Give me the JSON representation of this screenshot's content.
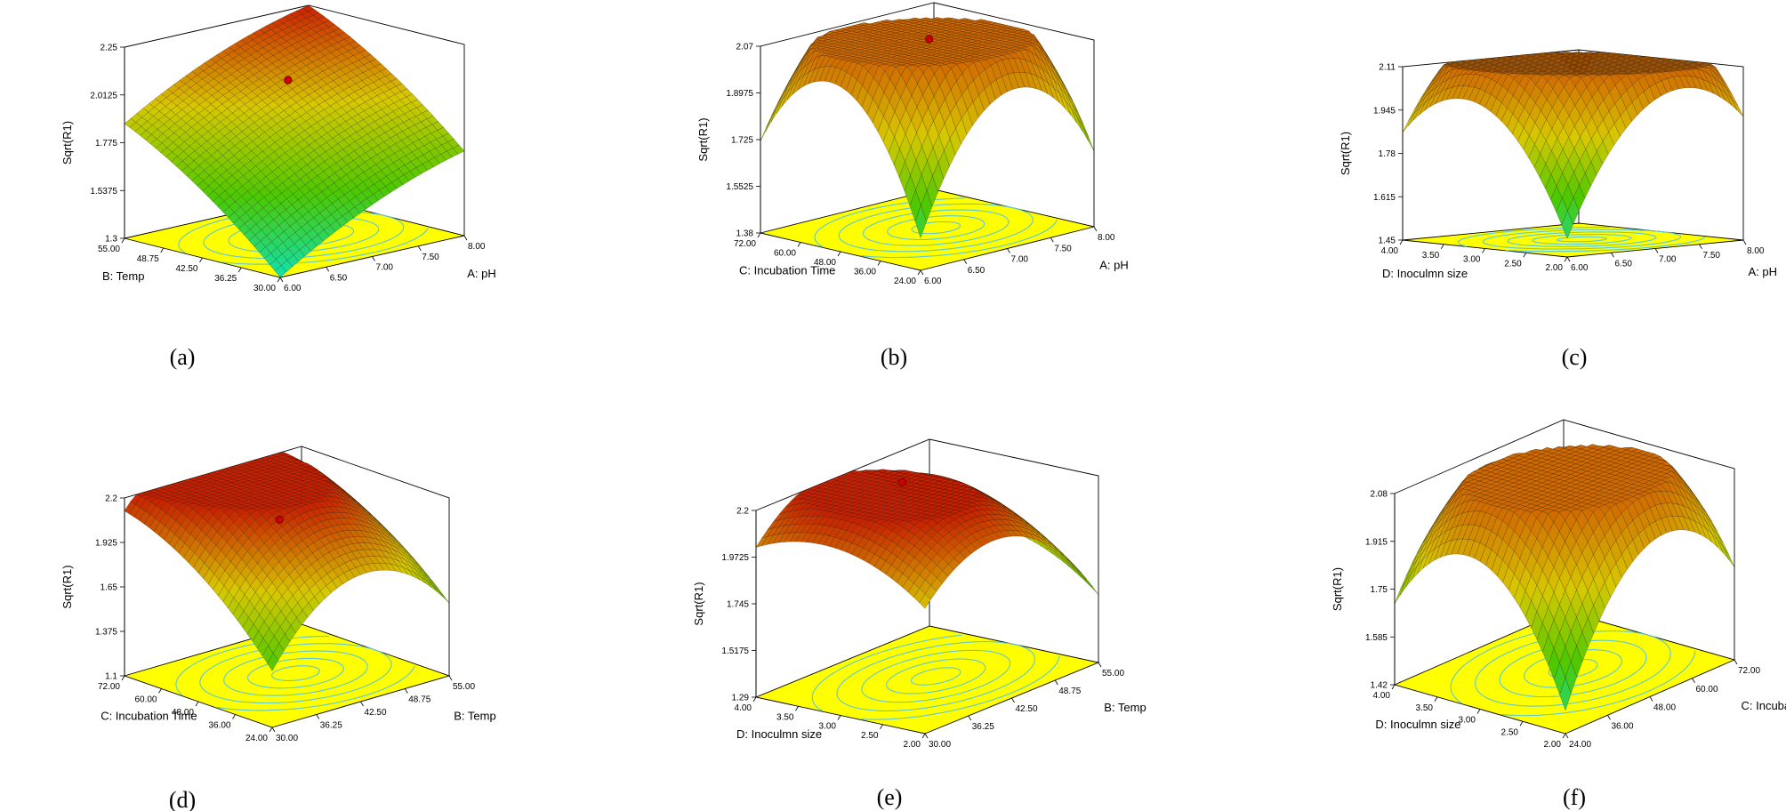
{
  "chart_data": [
    {
      "panel": "(a)",
      "type": "surface",
      "zlabel": "Sqrt(R1)",
      "zticks": [
        "1.3",
        "1.5375",
        "1.775",
        "2.0125",
        "2.25"
      ],
      "xlabel": "A: pH",
      "xticks": [
        "6.00",
        "6.50",
        "7.00",
        "7.50",
        "8.00"
      ],
      "ylabel": "B: Temp",
      "yticks": [
        "30.00",
        "36.25",
        "42.50",
        "48.75",
        "55.00"
      ],
      "zlim": [
        1.3,
        2.25
      ],
      "surface": {
        "corners": [
          1.3,
          1.72,
          1.87,
          2.25
        ],
        "curvature": [
          0.05,
          0.05
        ],
        "top_color": "#cc2200"
      },
      "design_point": {
        "u": 0.55,
        "v": 0.6,
        "z": 2.05
      }
    },
    {
      "panel": "(b)",
      "type": "surface",
      "zlabel": "Sqrt(R1)",
      "zticks": [
        "1.38",
        "1.5525",
        "1.725",
        "1.8975",
        "2.07"
      ],
      "xlabel": "A: pH",
      "xticks": [
        "6.00",
        "6.50",
        "7.00",
        "7.50",
        "8.00"
      ],
      "ylabel": "C: Incubation Time",
      "yticks": [
        "24.00",
        "36.00",
        "48.00",
        "60.00",
        "72.00"
      ],
      "zlim": [
        1.38,
        2.07
      ],
      "surface": {
        "corners": [
          1.5,
          1.66,
          1.72,
          1.6
        ],
        "curvature": [
          0.55,
          0.55
        ],
        "top_color": "#d06a00"
      },
      "design_point": {
        "u": 0.65,
        "v": 0.65,
        "z": 2.04
      }
    },
    {
      "panel": "(c)",
      "type": "surface",
      "zlabel": "Sqrt(R1)",
      "zticks": [
        "1.45",
        "1.615",
        "1.78",
        "1.945",
        "2.11"
      ],
      "xlabel": "A: pH",
      "xticks": [
        "6.00",
        "6.50",
        "7.00",
        "7.50",
        "8.00"
      ],
      "ylabel": "D: Inoculmn size",
      "yticks": [
        "2.00",
        "2.50",
        "3.00",
        "3.50",
        "4.00"
      ],
      "zlim": [
        1.45,
        2.11
      ],
      "surface": {
        "corners": [
          1.52,
          1.92,
          1.86,
          1.99
        ],
        "curvature": [
          0.45,
          0.45
        ],
        "top_color": "#d06a00"
      },
      "design_point": null
    },
    {
      "panel": "(d)",
      "type": "surface",
      "zlabel": "Sqrt(R1)",
      "zticks": [
        "1.1",
        "1.375",
        "1.65",
        "1.925",
        "2.2"
      ],
      "xlabel": "B: Temp",
      "xticks": [
        "30.00",
        "36.25",
        "42.50",
        "48.75",
        "55.00"
      ],
      "ylabel": "C: Incubation Time",
      "yticks": [
        "24.00",
        "36.00",
        "48.00",
        "60.00",
        "72.00"
      ],
      "zlim": [
        1.1,
        2.2
      ],
      "surface": {
        "corners": [
          1.45,
          1.55,
          2.12,
          2.05
        ],
        "curvature": [
          0.35,
          0.1
        ],
        "top_color": "#c62000"
      },
      "design_point": {
        "u": 0.5,
        "v": 0.55,
        "z": 2.05
      }
    },
    {
      "panel": "(e)",
      "type": "surface",
      "zlabel": "Sqrt(R1)",
      "zticks": [
        "1.29",
        "1.5175",
        "1.745",
        "1.9725",
        "2.2"
      ],
      "xlabel": "B: Temp",
      "xticks": [
        "30.00",
        "36.25",
        "42.50",
        "48.75",
        "55.00"
      ],
      "ylabel": "D: Inoculmn size",
      "yticks": [
        "2.00",
        "2.50",
        "3.00",
        "3.50",
        "4.00"
      ],
      "zlim": [
        1.29,
        2.2
      ],
      "surface": {
        "corners": [
          1.9,
          1.62,
          2.02,
          1.78
        ],
        "curvature": [
          0.35,
          0.15
        ],
        "top_color": "#c62000"
      },
      "design_point": {
        "u": 0.55,
        "v": 0.7,
        "z": 2.2
      }
    },
    {
      "panel": "(f)",
      "type": "surface",
      "zlabel": "Sqrt(R1)",
      "zticks": [
        "1.42",
        "1.585",
        "1.75",
        "1.915",
        "2.08"
      ],
      "xlabel": "C: Incubation Time",
      "xticks": [
        "24.00",
        "36.00",
        "48.00",
        "60.00",
        "72.00"
      ],
      "ylabel": "D: Inoculmn size",
      "yticks": [
        "2.00",
        "2.50",
        "3.00",
        "3.50",
        "4.00"
      ],
      "zlim": [
        1.42,
        2.08
      ],
      "surface": {
        "corners": [
          1.5,
          1.74,
          1.7,
          1.62
        ],
        "curvature": [
          0.5,
          0.5
        ],
        "top_color": "#d06a00"
      },
      "design_point": null
    }
  ],
  "colors": {
    "floor": "#ffff00",
    "contour": "#5bc8d8",
    "low": "#12e0b0",
    "mid": "#4ec800",
    "high": "#d8c800",
    "mesh": "#000000",
    "point": "#cc0000"
  }
}
